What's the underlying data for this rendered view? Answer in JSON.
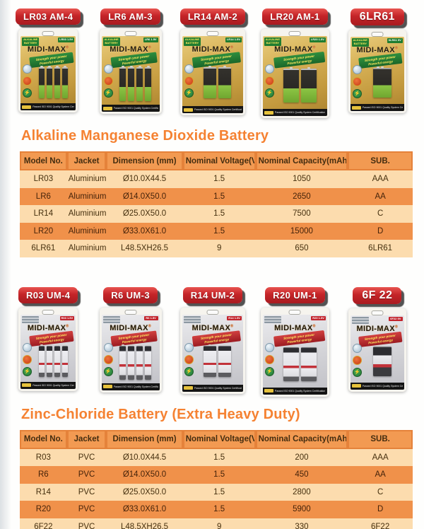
{
  "brand": {
    "name": "MIDI-MAX",
    "reg": "®",
    "tagline": [
      "Strength your power",
      "Powerful energy"
    ],
    "certification": "Passed ISO 9001 Quality System Certification",
    "alkaline_corner_label": "ALKALINE BATTERY"
  },
  "alkaline": {
    "heading": "Alkaline Manganese Dioxide Battery",
    "products": [
      {
        "label": "LR03 AM-4",
        "model": "LR03",
        "volt": "1.5V",
        "cell_type": "aaa",
        "cell_count": 4,
        "big": false
      },
      {
        "label": "LR6 AM-3",
        "model": "LR6",
        "volt": "1.5V",
        "cell_type": "aa",
        "cell_count": 4,
        "big": false
      },
      {
        "label": "LR14 AM-2",
        "model": "LR14",
        "volt": "1.5V",
        "cell_type": "c",
        "cell_count": 2,
        "big": false
      },
      {
        "label": "LR20 AM-1",
        "model": "LR20",
        "volt": "1.5V",
        "cell_type": "d",
        "cell_count": 2,
        "big": false
      },
      {
        "label": "6LR61",
        "model": "6LR61",
        "volt": "9V",
        "cell_type": "v9",
        "cell_count": 1,
        "big": true
      }
    ],
    "table": {
      "headers": [
        "Model No.",
        "Jacket",
        "Dimension (mm)",
        "Nominal Voltage(V)",
        "Nominal Capacity(mAh)",
        "SUB."
      ],
      "rows": [
        [
          "LR03",
          "Aluminium Foil",
          "Ø10.0X44.5",
          "1.5",
          "1050",
          "AAA"
        ],
        [
          "LR6",
          "Aluminium Foil",
          "Ø14.0X50.0",
          "1.5",
          "2650",
          "AA"
        ],
        [
          "LR14",
          "Aluminium Foil",
          "Ø25.0X50.0",
          "1.5",
          "7500",
          "C"
        ],
        [
          "LR20",
          "Aluminium Foil",
          "Ø33.0X61.0",
          "1.5",
          "15000",
          "D"
        ],
        [
          "6LR61",
          "Aluminium Foil",
          "L48.5XH26.5",
          "9",
          "650",
          "6LR61"
        ]
      ]
    }
  },
  "zinc": {
    "heading": "Zinc-Chloride Battery (Extra Heavy Duty)",
    "products": [
      {
        "label": "R03 UM-4",
        "model": "R03",
        "volt": "1.5V",
        "cell_type": "aaa",
        "cell_count": 4,
        "big": false
      },
      {
        "label": "R6 UM-3",
        "model": "R6",
        "volt": "1.5V",
        "cell_type": "aa",
        "cell_count": 4,
        "big": false
      },
      {
        "label": "R14 UM-2",
        "model": "R14",
        "volt": "1.5V",
        "cell_type": "c",
        "cell_count": 2,
        "big": false
      },
      {
        "label": "R20 UM-1",
        "model": "R20",
        "volt": "1.5V",
        "cell_type": "d",
        "cell_count": 2,
        "big": false
      },
      {
        "label": "6F 22",
        "model": "6F22",
        "volt": "9V",
        "cell_type": "v9",
        "cell_count": 1,
        "big": true
      }
    ],
    "table": {
      "headers": [
        "Model No.",
        "Jacket",
        "Dimension (mm)",
        "Nominal Voltage(V)",
        "Nominal Capacity(mAh)",
        "SUB."
      ],
      "rows": [
        [
          "R03",
          "PVC",
          "Ø10.0X44.5",
          "1.5",
          "200",
          "AAA"
        ],
        [
          "R6",
          "PVC",
          "Ø14.0X50.0",
          "1.5",
          "450",
          "AA"
        ],
        [
          "R14",
          "PVC",
          "Ø25.0X50.0",
          "1.5",
          "2800",
          "C"
        ],
        [
          "R20",
          "PVC",
          "Ø33.0X61.0",
          "1.5",
          "5900",
          "D"
        ],
        [
          "6F22",
          "PVC",
          "L48.5XH26.5",
          "9",
          "330",
          "6F22"
        ]
      ]
    }
  },
  "colors": {
    "heading_orange": "#f58232",
    "pill_red": "#c42428",
    "table_header_fill": "#f29a52",
    "table_header_border": "#e5823a",
    "row_light": "#fcdcae",
    "row_dark": "#f0914a",
    "gold_pack": "#d6b055",
    "green_band": "#1f7d30",
    "silver_pack": "#d6d6da",
    "red_band": "#c2242c"
  }
}
